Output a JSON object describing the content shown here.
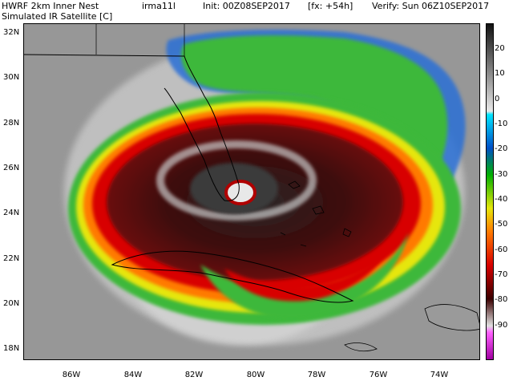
{
  "header": {
    "model": "HWRF 2km Inner Nest",
    "storm": "irma11l",
    "init": "Init: 00Z08SEP2017",
    "forecast": "[fx: +54h]",
    "verify": "Verify: Sun 06Z10SEP2017",
    "product": "Simulated IR Satellite [C]"
  },
  "axes": {
    "lat_labels": [
      "32N",
      "30N",
      "28N",
      "26N",
      "24N",
      "22N",
      "20N",
      "18N"
    ],
    "lon_labels": [
      "86W",
      "84W",
      "82W",
      "80W",
      "78W",
      "76W",
      "74W"
    ]
  },
  "colorbar": {
    "labels": [
      "20",
      "10",
      "0",
      "-10",
      "-20",
      "-30",
      "-40",
      "-50",
      "-60",
      "-70",
      "-80",
      "-90"
    ]
  },
  "colors": {
    "cold_cloud": "#5b5b5b",
    "green": "#3db83a",
    "yellow": "#e6e60a",
    "orange": "#ff7a00",
    "red": "#d80000",
    "dark_red": "#4a0a0a"
  }
}
